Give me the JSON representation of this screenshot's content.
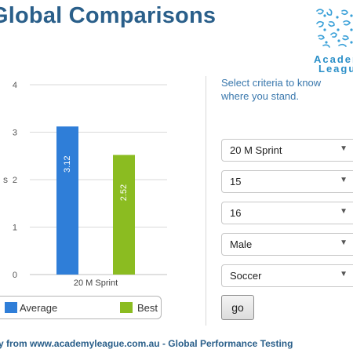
{
  "header": {
    "title": "Global Comparisons",
    "logo": {
      "line1": "Academ",
      "line2": "League",
      "icon": "academy-league-logo-icon"
    }
  },
  "chart_data": {
    "type": "bar",
    "categories": [
      "20 M Sprint"
    ],
    "series": [
      {
        "name": "Average",
        "values": [
          3.12
        ],
        "color": "#2f7ed8"
      },
      {
        "name": "Best",
        "values": [
          2.52
        ],
        "color": "#8bbc21"
      }
    ],
    "data_labels": [
      "3.12",
      "2.52"
    ],
    "ylim": [
      0,
      4
    ],
    "yticks": [
      0,
      1,
      2,
      3,
      4
    ],
    "ytick_labels": [
      "0",
      "1",
      "2",
      "3",
      "4"
    ],
    "ylabel_fragment": "s",
    "grid": true,
    "legend_position": "bottom"
  },
  "form": {
    "prompt": "Select criteria to know where you stand.",
    "selects": [
      {
        "name": "test-select",
        "value": "20 M Sprint"
      },
      {
        "name": "age-from-select",
        "value": "15"
      },
      {
        "name": "age-to-select",
        "value": "16"
      },
      {
        "name": "gender-select",
        "value": "Male"
      },
      {
        "name": "sport-select",
        "value": "Soccer"
      }
    ],
    "go_label": "go",
    "chevron_icon": "chevron-down-icon"
  },
  "footer": {
    "text": "y from www.academyleague.com.au - Global Performance Testing"
  }
}
